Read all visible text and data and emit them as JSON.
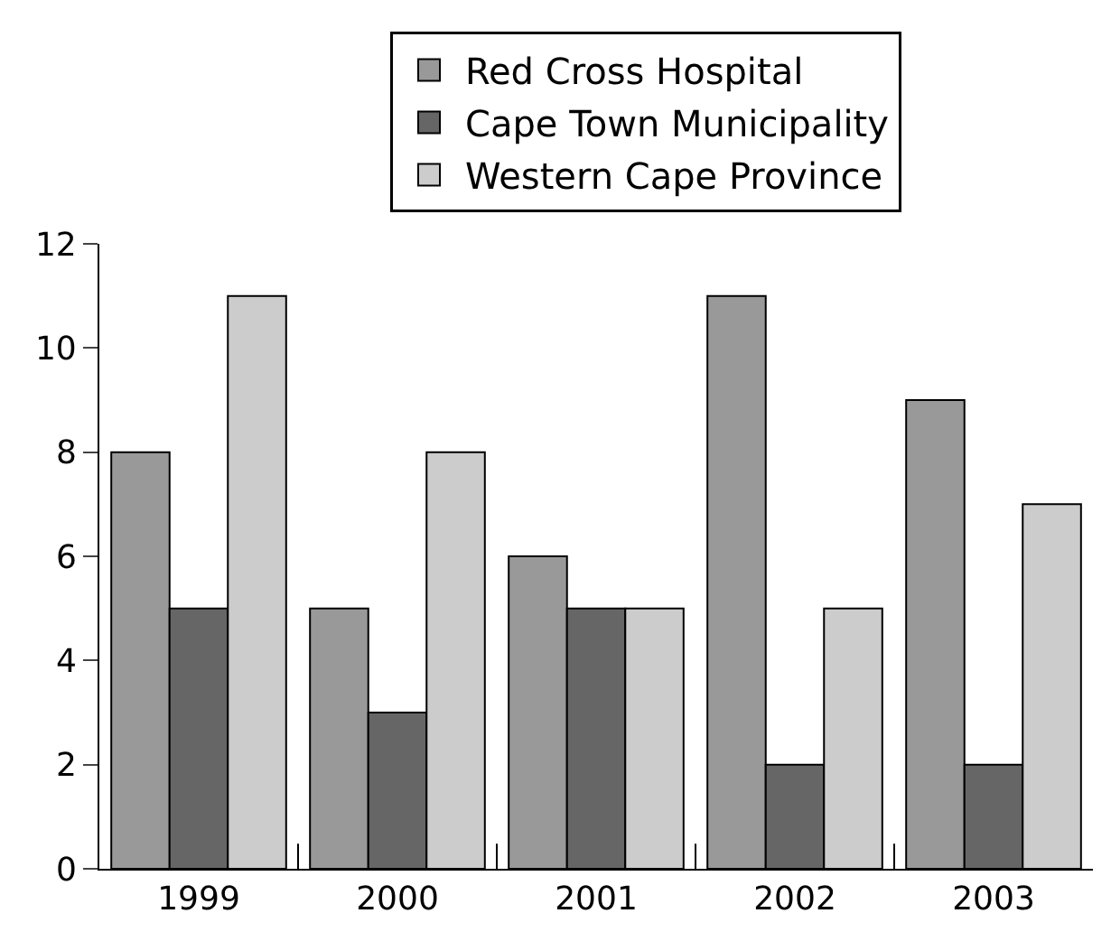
{
  "chart_data": {
    "type": "bar",
    "categories": [
      "1999",
      "2000",
      "2001",
      "2002",
      "2003"
    ],
    "series": [
      {
        "name": "Red Cross Hospital",
        "color": "#999999",
        "values": [
          8,
          5,
          6,
          11,
          9
        ]
      },
      {
        "name": "Cape Town Municipality",
        "color": "#666666",
        "values": [
          5,
          3,
          5,
          2,
          2
        ]
      },
      {
        "name": "Western Cape Province",
        "color": "#cccccc",
        "values": [
          11,
          8,
          5,
          5,
          7
        ]
      }
    ],
    "ylim": [
      0,
      12
    ],
    "yticks": [
      0,
      2,
      4,
      6,
      8,
      10,
      12
    ],
    "grid": false,
    "legend": "top"
  }
}
